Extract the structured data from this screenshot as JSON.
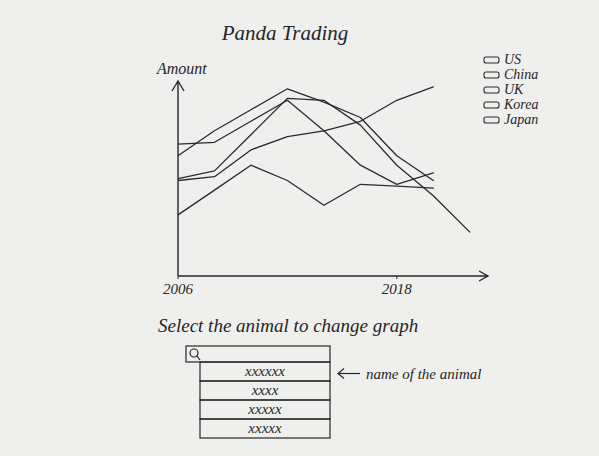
{
  "chart_data": {
    "type": "line",
    "title": "Panda Trading",
    "y_label": "Amount",
    "x": [
      2006,
      2008,
      2010,
      2012,
      2014,
      2016,
      2018,
      2020,
      2022
    ],
    "xlim": [
      2006,
      2023
    ],
    "xticks": [
      2006,
      2018
    ],
    "ylim": [
      0,
      10
    ],
    "yticks": [],
    "tick_labels": "x",
    "grid": false,
    "legend": "right",
    "series": [
      {
        "name": "US",
        "color": "#2a2a2a",
        "values": [
          6.3,
          7.6,
          8.7,
          9.8,
          9.1,
          8.3,
          6.3,
          5.0,
          null
        ]
      },
      {
        "name": "China",
        "color": "#2a2a2a",
        "values": [
          5.0,
          5.2,
          6.6,
          7.3,
          7.6,
          8.1,
          9.2,
          9.9,
          null
        ]
      },
      {
        "name": "UK",
        "color": "#2a2a2a",
        "values": [
          6.9,
          7.0,
          8.1,
          9.2,
          7.6,
          5.8,
          4.8,
          5.4,
          null
        ]
      },
      {
        "name": "Korea",
        "color": "#2a2a2a",
        "values": [
          5.1,
          5.5,
          7.4,
          9.3,
          9.2,
          7.9,
          5.8,
          4.2,
          2.3
        ]
      },
      {
        "name": "Japan",
        "color": "#2a2a2a",
        "values": [
          3.2,
          4.5,
          5.8,
          5.0,
          3.7,
          4.8,
          4.7,
          4.6,
          null
        ]
      }
    ]
  },
  "controls": {
    "instruction": "Select the animal to change graph",
    "dropdown": {
      "options": [
        "xxxxxx",
        "xxxx",
        "xxxxx",
        "xxxxx"
      ]
    },
    "callout": "name of the animal"
  }
}
